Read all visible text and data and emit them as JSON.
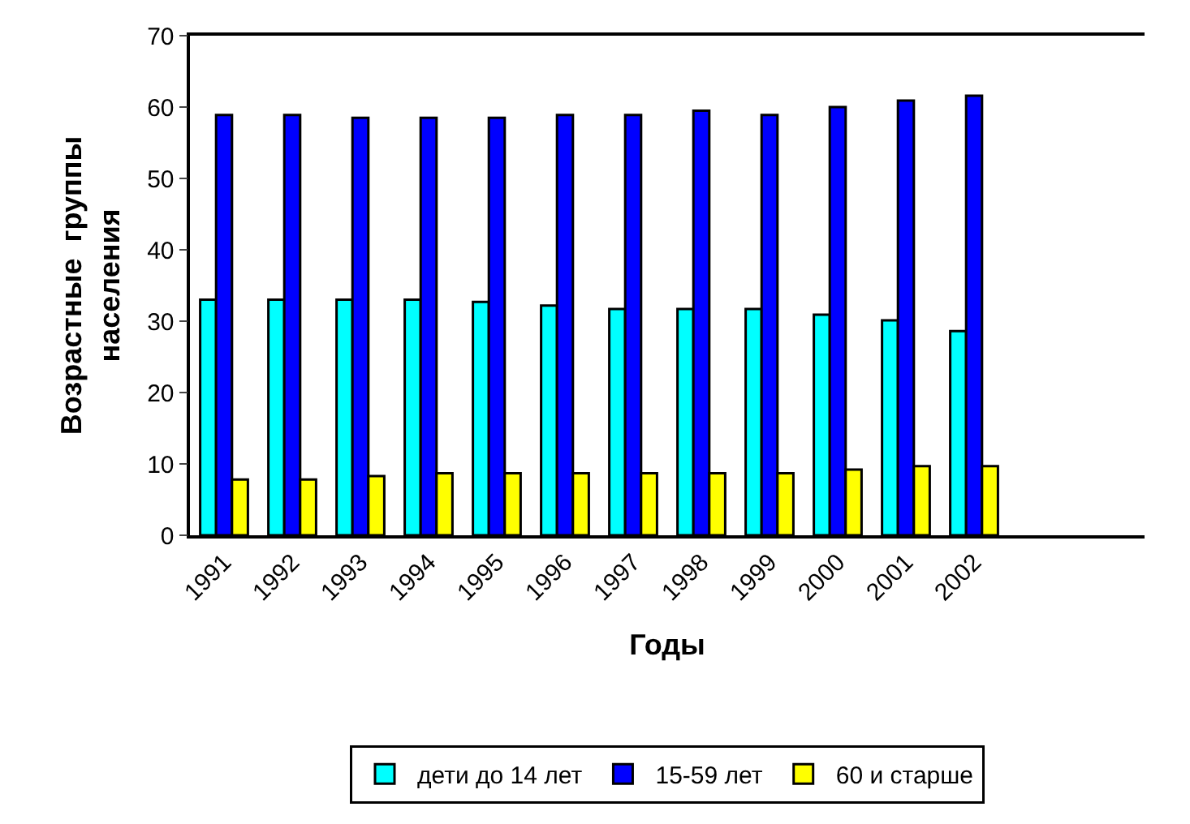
{
  "chart_data": {
    "type": "bar",
    "xlabel": "Годы",
    "ylabel": "Возрастные  группы\nнаселения",
    "categories": [
      "1991",
      "1992",
      "1993",
      "1994",
      "1995",
      "1996",
      "1997",
      "1998",
      "1999",
      "2000",
      "2001",
      "2002",
      null,
      null
    ],
    "series": [
      {
        "name": "дети до 14 лет",
        "color": "#00ffff",
        "values": [
          33,
          33,
          33,
          33,
          32.7,
          32.2,
          31.7,
          31.7,
          31.7,
          30.9,
          30.1,
          28.6,
          null,
          null
        ]
      },
      {
        "name": "15-59 лет",
        "color": "#0000ff",
        "values": [
          58.9,
          58.9,
          58.5,
          58.5,
          58.5,
          58.9,
          58.9,
          59.5,
          58.9,
          60,
          60.9,
          61.6,
          null,
          null
        ]
      },
      {
        "name": "60 и старше",
        "color": "#ffff00",
        "values": [
          7.8,
          7.8,
          8.3,
          8.7,
          8.7,
          8.7,
          8.7,
          8.7,
          8.7,
          9.2,
          9.7,
          9.7,
          null,
          null
        ]
      }
    ],
    "ylim": [
      0,
      70
    ],
    "yticks": [
      0,
      10,
      20,
      30,
      40,
      50,
      60,
      70
    ],
    "legend": "bottom"
  }
}
